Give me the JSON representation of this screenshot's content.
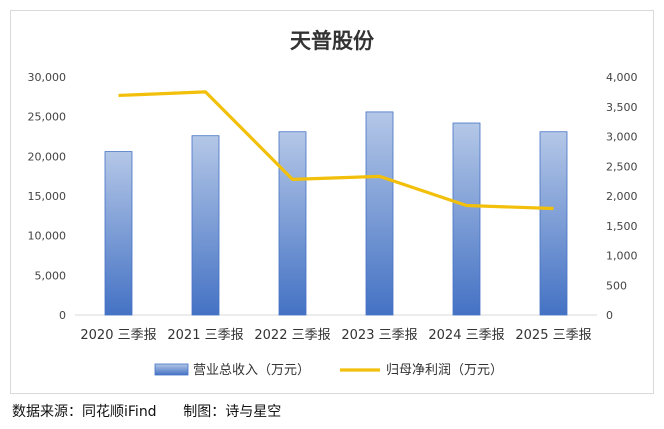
{
  "chart_data": {
    "type": "bar",
    "title": "天普股份",
    "categories": [
      "2020 三季报",
      "2021 三季报",
      "2022 三季报",
      "2023 三季报",
      "2024 三季报",
      "2025 三季报"
    ],
    "series": [
      {
        "name": "营业总收入（万元）",
        "type": "bar",
        "axis": "left",
        "values": [
          20600,
          22600,
          23100,
          25600,
          24200,
          23100
        ]
      },
      {
        "name": "归母净利润（万元）",
        "type": "line",
        "axis": "right",
        "values": [
          3690,
          3750,
          2280,
          2330,
          1840,
          1790
        ]
      }
    ],
    "ylim_left": [
      0,
      30000
    ],
    "ylim_right": [
      0,
      4000
    ],
    "yticks_left": [
      "0",
      "5,000",
      "10,000",
      "15,000",
      "20,000",
      "25,000",
      "30,000"
    ],
    "yticks_right": [
      "0",
      "500",
      "1,000",
      "1,500",
      "2,000",
      "2,500",
      "3,000",
      "3,500",
      "4,000"
    ],
    "grid": false,
    "legend_position": "bottom",
    "colors": {
      "bar_top": "#b4c7e7",
      "bar_bottom": "#4472c4",
      "bar_edge": "#4472c4",
      "line": "#f2c00b"
    }
  },
  "footer": {
    "source_text": "数据来源：同花顺iFind      制图：诗与星空"
  }
}
